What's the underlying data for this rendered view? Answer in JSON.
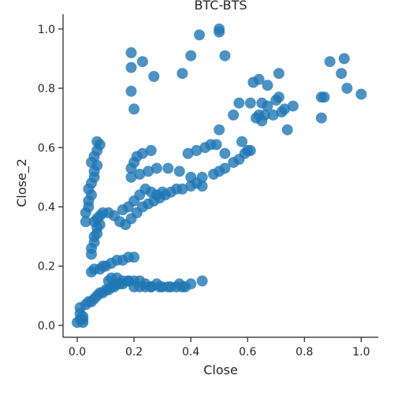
{
  "chart_data": {
    "type": "scatter",
    "title": "BTC-BTS",
    "xlabel": "Close",
    "ylabel": "Close_2",
    "xlim": [
      -0.05,
      1.06
    ],
    "ylim": [
      -0.04,
      1.05
    ],
    "xticks": [
      "0.0",
      "0.2",
      "0.4",
      "0.6",
      "0.8",
      "1.0"
    ],
    "yticks": [
      "0.0",
      "0.2",
      "0.4",
      "0.6",
      "0.8",
      "1.0"
    ],
    "grid": false,
    "legend": "none",
    "colors": {
      "points": "#1f77b4",
      "axes": "#262626"
    },
    "x": [
      0.0,
      0.01,
      0.01,
      0.02,
      0.01,
      0.02,
      0.03,
      0.02,
      0.04,
      0.05,
      0.06,
      0.07,
      0.08,
      0.09,
      0.1,
      0.11,
      0.12,
      0.13,
      0.14,
      0.15,
      0.16,
      0.18,
      0.2,
      0.22,
      0.24,
      0.26,
      0.28,
      0.3,
      0.33,
      0.36,
      0.38,
      0.4,
      0.44,
      0.11,
      0.12,
      0.14,
      0.16,
      0.18,
      0.2,
      0.22,
      0.24,
      0.26,
      0.29,
      0.32,
      0.35,
      0.37,
      0.05,
      0.06,
      0.08,
      0.09,
      0.1,
      0.12,
      0.14,
      0.16,
      0.18,
      0.2,
      0.05,
      0.05,
      0.06,
      0.06,
      0.07,
      0.07,
      0.08,
      0.06,
      0.07,
      0.08,
      0.09,
      0.11,
      0.13,
      0.15,
      0.17,
      0.19,
      0.21,
      0.23,
      0.25,
      0.27,
      0.29,
      0.31,
      0.33,
      0.35,
      0.37,
      0.4,
      0.42,
      0.44,
      0.03,
      0.03,
      0.04,
      0.04,
      0.05,
      0.04,
      0.05,
      0.06,
      0.06,
      0.07,
      0.05,
      0.06,
      0.07,
      0.08,
      0.07,
      0.16,
      0.18,
      0.2,
      0.22,
      0.24,
      0.26,
      0.28,
      0.3,
      0.19,
      0.22,
      0.25,
      0.28,
      0.32,
      0.36,
      0.4,
      0.44,
      0.48,
      0.5,
      0.52,
      0.55,
      0.57,
      0.59,
      0.61,
      0.39,
      0.42,
      0.45,
      0.47,
      0.49,
      0.19,
      0.2,
      0.21,
      0.23,
      0.26,
      0.19,
      0.2,
      0.19,
      0.23,
      0.27,
      0.37,
      0.4,
      0.43,
      0.5,
      0.5,
      0.52,
      0.19,
      0.52,
      0.5,
      0.55,
      0.57,
      0.6,
      0.63,
      0.64,
      0.65,
      0.67,
      0.69,
      0.7,
      0.72,
      0.73,
      0.74,
      0.76,
      0.86,
      0.87,
      0.89,
      0.93,
      0.94,
      0.95,
      1.0,
      0.61,
      0.62,
      0.64,
      0.65,
      0.67,
      0.71,
      0.86,
      0.66,
      0.71,
      0.58
    ],
    "y": [
      0.01,
      0.02,
      0.04,
      0.01,
      0.06,
      0.03,
      0.07,
      0.02,
      0.08,
      0.08,
      0.09,
      0.1,
      0.11,
      0.11,
      0.12,
      0.12,
      0.13,
      0.13,
      0.14,
      0.14,
      0.14,
      0.15,
      0.15,
      0.15,
      0.14,
      0.13,
      0.14,
      0.13,
      0.13,
      0.14,
      0.13,
      0.14,
      0.15,
      0.15,
      0.16,
      0.16,
      0.15,
      0.15,
      0.13,
      0.13,
      0.13,
      0.13,
      0.13,
      0.13,
      0.13,
      0.13,
      0.18,
      0.19,
      0.19,
      0.2,
      0.2,
      0.21,
      0.22,
      0.22,
      0.23,
      0.23,
      0.24,
      0.26,
      0.28,
      0.3,
      0.31,
      0.33,
      0.34,
      0.35,
      0.36,
      0.37,
      0.38,
      0.38,
      0.37,
      0.35,
      0.34,
      0.36,
      0.38,
      0.4,
      0.41,
      0.42,
      0.43,
      0.44,
      0.45,
      0.46,
      0.46,
      0.47,
      0.48,
      0.47,
      0.35,
      0.38,
      0.4,
      0.42,
      0.44,
      0.46,
      0.48,
      0.5,
      0.52,
      0.54,
      0.55,
      0.57,
      0.59,
      0.61,
      0.62,
      0.39,
      0.4,
      0.42,
      0.44,
      0.46,
      0.45,
      0.44,
      0.45,
      0.5,
      0.51,
      0.52,
      0.53,
      0.53,
      0.52,
      0.5,
      0.5,
      0.51,
      0.52,
      0.53,
      0.55,
      0.56,
      0.58,
      0.59,
      0.58,
      0.59,
      0.6,
      0.61,
      0.61,
      0.53,
      0.55,
      0.57,
      0.58,
      0.59,
      0.79,
      0.73,
      0.92,
      0.89,
      0.84,
      0.85,
      0.91,
      0.98,
      0.99,
      1.0,
      0.91,
      0.87,
      0.58,
      0.66,
      0.71,
      0.75,
      0.59,
      0.7,
      0.71,
      0.75,
      0.81,
      0.71,
      0.76,
      0.72,
      0.73,
      0.66,
      0.74,
      0.7,
      0.77,
      0.89,
      0.85,
      0.9,
      0.8,
      0.78,
      0.75,
      0.82,
      0.83,
      0.69,
      0.74,
      0.85,
      0.77,
      0.71,
      0.77,
      0.62
    ]
  }
}
